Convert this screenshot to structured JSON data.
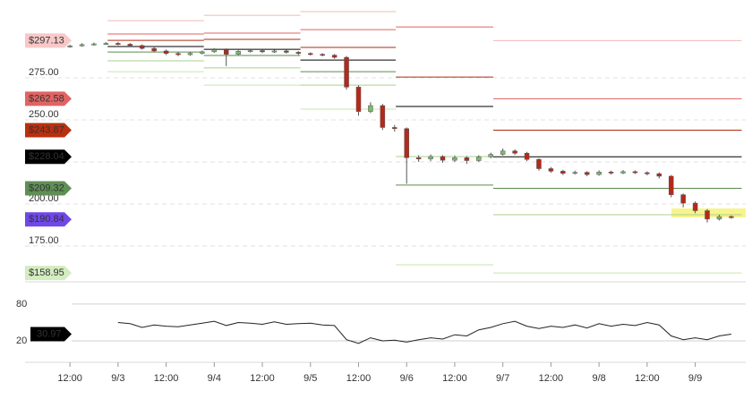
{
  "chart_data": [
    {
      "type": "candlestick",
      "x": [
        0,
        3,
        6,
        9,
        12,
        15,
        18,
        21,
        24,
        27,
        30,
        33,
        36,
        39,
        42,
        45,
        48,
        51,
        54,
        57,
        60,
        63,
        66,
        69,
        72,
        75,
        78,
        81,
        84,
        87,
        90,
        93,
        96,
        99,
        102,
        105,
        108,
        111,
        114,
        117,
        120,
        123,
        126,
        129,
        132,
        135,
        138,
        141,
        144,
        147,
        150,
        153,
        156,
        159,
        162,
        165
      ],
      "open": [
        293.5,
        294.0,
        294.8,
        295.2,
        295.5,
        295.0,
        294.2,
        292.5,
        291.0,
        289.5,
        288.8,
        289.6,
        290.5,
        291.8,
        289.0,
        290.8,
        291.2,
        290.5,
        291.0,
        290.2,
        289.5,
        289.0,
        288.5,
        287.2,
        269.5,
        255.0,
        258.5,
        245.5,
        244.8,
        227.5,
        226.8,
        228.2,
        226.0,
        227.5,
        225.8,
        228.0,
        229.5,
        231.5,
        230.2,
        226.5,
        221.0,
        219.5,
        218.2,
        218.8,
        217.5,
        219.0,
        218.4,
        219.2,
        218.6,
        218.0,
        216.5,
        205.5,
        200.5,
        196.0,
        191.0,
        192.5
      ],
      "high": [
        294.8,
        295.6,
        296.0,
        296.3,
        296.4,
        295.7,
        294.9,
        293.2,
        291.8,
        290.3,
        290.4,
        291.3,
        292.7,
        292.5,
        291.6,
        292.0,
        291.9,
        291.8,
        291.7,
        290.9,
        290.2,
        289.7,
        289.2,
        288.0,
        270.5,
        260.5,
        259.5,
        247.0,
        245.5,
        229.0,
        229.5,
        229.0,
        228.8,
        228.5,
        229.0,
        230.5,
        233.0,
        232.5,
        231.0,
        227.2,
        222.0,
        220.3,
        219.8,
        219.5,
        220.0,
        219.8,
        220.2,
        220.0,
        219.4,
        218.8,
        217.2,
        206.2,
        201.5,
        197.0,
        193.5,
        193.2
      ],
      "low": [
        292.9,
        293.5,
        294.2,
        294.6,
        294.3,
        293.5,
        291.8,
        290.2,
        288.6,
        287.9,
        288.1,
        288.9,
        289.8,
        282.0,
        288.3,
        290.0,
        289.7,
        289.8,
        289.4,
        288.7,
        288.3,
        287.8,
        286.4,
        268.0,
        252.5,
        254.0,
        244.0,
        243.0,
        212.0,
        225.0,
        225.5,
        224.5,
        225.0,
        223.8,
        225.0,
        227.2,
        228.8,
        229.2,
        225.5,
        219.8,
        218.5,
        217.2,
        217.5,
        216.5,
        216.8,
        217.5,
        217.8,
        217.8,
        217.0,
        215.2,
        204.0,
        198.0,
        194.5,
        189.0,
        190.2,
        191.2
      ],
      "close": [
        294.0,
        294.8,
        295.2,
        295.5,
        295.0,
        294.2,
        292.5,
        291.0,
        289.5,
        288.8,
        289.6,
        290.5,
        291.8,
        289.0,
        290.8,
        291.2,
        290.5,
        291.0,
        290.2,
        289.5,
        289.0,
        288.5,
        287.2,
        269.5,
        255.0,
        258.5,
        245.5,
        244.8,
        227.5,
        226.8,
        228.2,
        226.0,
        227.5,
        225.8,
        228.0,
        229.5,
        231.5,
        230.2,
        226.5,
        221.0,
        219.5,
        218.2,
        218.8,
        217.5,
        219.0,
        218.4,
        219.2,
        218.6,
        218.0,
        216.5,
        205.5,
        200.5,
        196.0,
        191.0,
        192.5,
        192.2
      ],
      "up_color": "#7dbb6a",
      "down_color": "#b5291a",
      "xlim": [
        -3.6,
        168.6
      ],
      "xticks": [
        {
          "value": 0,
          "label": "12:00"
        },
        {
          "value": 12,
          "label": "9/3"
        },
        {
          "value": 24,
          "label": "12:00"
        },
        {
          "value": 36,
          "label": "9/4"
        },
        {
          "value": 48,
          "label": "12:00"
        },
        {
          "value": 60,
          "label": "9/5"
        },
        {
          "value": 72,
          "label": "12:00"
        },
        {
          "value": 84,
          "label": "9/6"
        },
        {
          "value": 96,
          "label": "12:00"
        },
        {
          "value": 108,
          "label": "9/7"
        },
        {
          "value": 120,
          "label": "12:00"
        },
        {
          "value": 132,
          "label": "9/8"
        },
        {
          "value": 144,
          "label": "12:00"
        },
        {
          "value": 156,
          "label": "9/9"
        }
      ],
      "ylim": [
        153.7,
        321.3
      ],
      "yticks": [
        {
          "value": 175,
          "label": "175.00"
        },
        {
          "value": 200,
          "label": "200.00"
        },
        {
          "value": 225,
          "label": "225.00"
        },
        {
          "value": 250,
          "label": "250.00"
        },
        {
          "value": 275,
          "label": "275.00"
        }
      ],
      "grid": true,
      "levels": [
        {
          "value": 297.13,
          "label": "$297.13",
          "color": "#f8c8c8",
          "text_color": "#333333"
        },
        {
          "value": 262.58,
          "label": "$262.58",
          "color": "#e06464",
          "text_color": "#ffffff"
        },
        {
          "value": 243.87,
          "label": "$243.87",
          "color": "#b83010",
          "text_color": "#ffffff"
        },
        {
          "value": 228.04,
          "label": "$228.04",
          "color": "#000000",
          "text_color": "#ffffff"
        },
        {
          "value": 209.32,
          "label": "$209.32",
          "color": "#5f8f55",
          "text_color": "#ffffff"
        },
        {
          "value": 190.84,
          "label": "$190.84",
          "color": "#7048e8",
          "text_color": "#ffffff"
        },
        {
          "value": 158.95,
          "label": "$158.95",
          "color": "#d3ecc0",
          "text_color": "#333333"
        }
      ],
      "pivots": [
        {
          "x": [
            9.4,
            33.4
          ],
          "levels": [
            309.0,
            301.1,
            297.3,
            293.6,
            290.4,
            285.1,
            278.7
          ],
          "colors": [
            "#f4b8b8",
            "#e06060",
            "#b22a10",
            "#000000",
            "#5a8a4f",
            "#a8d08d",
            "#c8e6b0"
          ]
        },
        {
          "x": [
            33.4,
            57.5
          ],
          "levels": [
            312.2,
            301.6,
            297.9,
            292.0,
            288.3,
            280.9,
            270.7
          ],
          "colors": [
            "#f4b8b8",
            "#e06060",
            "#b22a10",
            "#000000",
            "#5a8a4f",
            "#a8d08d",
            "#c8e6b0"
          ]
        },
        {
          "x": [
            57.5,
            81.3
          ],
          "levels": [
            314.4,
            303.7,
            293.1,
            285.6,
            278.7,
            270.7,
            256.4
          ],
          "colors": [
            "#f4b8b8",
            "#e06060",
            "#b22a10",
            "#000000",
            "#5a8a4f",
            "#a8d08d",
            "#c8e6b0"
          ]
        },
        {
          "x": [
            81.3,
            105.6
          ],
          "levels": [
            305.3,
            275.5,
            258.0,
            228.2,
            211.2,
            163.8
          ],
          "colors": [
            "#e06060",
            "#b22a10",
            "#000000",
            "#a8d08d",
            "#5a8a4f",
            "#c8e6b0"
          ]
        },
        {
          "x": [
            105.6,
            167.6
          ],
          "levels": [
            297.13,
            262.58,
            243.87,
            228.04,
            209.32,
            193.6,
            158.95
          ],
          "colors": [
            "#f4b8b8",
            "#e06060",
            "#b22a10",
            "#000000",
            "#5a8a4f",
            "#a8d08d",
            "#c8e6b0"
          ]
        }
      ]
    },
    {
      "type": "line",
      "values": [
        null,
        null,
        null,
        null,
        50,
        48,
        42,
        46,
        44,
        43,
        46,
        49,
        52,
        45,
        50,
        49,
        47,
        51,
        47,
        48,
        49,
        46,
        45,
        22,
        16,
        25,
        20,
        21,
        18,
        22,
        25,
        23,
        30,
        28,
        38,
        42,
        48,
        52,
        44,
        40,
        44,
        42,
        46,
        41,
        48,
        44,
        47,
        45,
        50,
        46,
        28,
        22,
        25,
        22,
        28,
        30.97
      ],
      "color": "#222222",
      "ylim": [
        -15,
        112
      ],
      "yticks": [
        20,
        80
      ],
      "grid": true
    }
  ]
}
